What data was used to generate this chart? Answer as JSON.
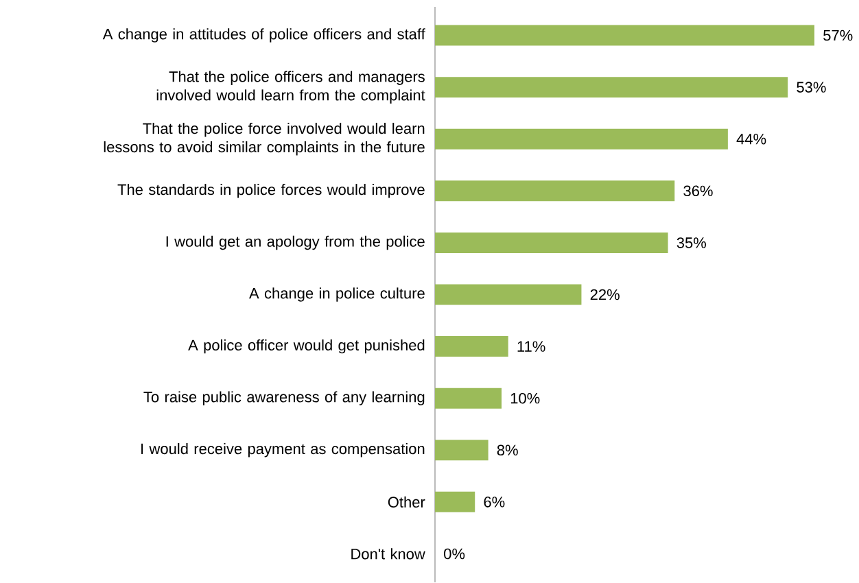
{
  "chart_data": {
    "type": "bar",
    "orientation": "horizontal",
    "categories": [
      "A change in attitudes of police officers and staff",
      "That the police officers and managers involved would learn from the complaint",
      "That the police force involved would learn lessons to avoid similar complaints in the future",
      "The standards in police forces would improve",
      "I would get an apology from the police",
      "A change in police culture",
      "A police officer would get punished",
      "To raise public awareness of any learning",
      "I would receive payment as compensation",
      "Other",
      "Don't know"
    ],
    "values": [
      57,
      53,
      44,
      36,
      35,
      22,
      11,
      10,
      8,
      6,
      0
    ],
    "value_labels": [
      "57%",
      "53%",
      "44%",
      "36%",
      "35%",
      "22%",
      "11%",
      "10%",
      "8%",
      "6%",
      "0%"
    ],
    "color": "#9bbb59"
  }
}
